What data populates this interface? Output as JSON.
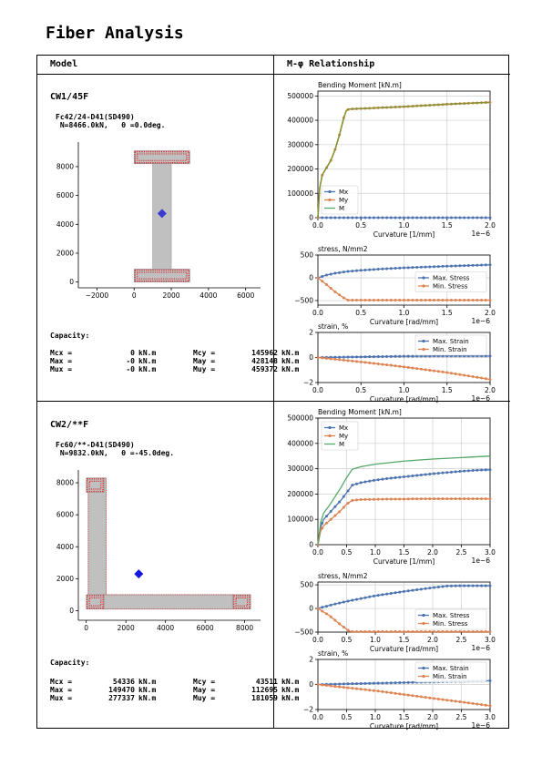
{
  "title": "Fiber Analysis",
  "headers": {
    "model": "Model",
    "relationship": "M-φ Relationship"
  },
  "cases": [
    {
      "name": "CW1/45F",
      "info_line1": "Fc42/24-D41(SD490)",
      "info_line2": " N=8466.0kN,   θ =0.0deg.",
      "capacity_title": "Capacity:",
      "capacity": [
        {
          "k1": "Mcx =",
          "v1": "0",
          "u1": "kN.m",
          "k2": "Mcy =",
          "v2": "145962",
          "u2": "kN.m"
        },
        {
          "k1": "Max =",
          "v1": "-0",
          "u1": "kN.m",
          "k2": "May =",
          "v2": "428148",
          "u2": "kN.m"
        },
        {
          "k1": "Mux =",
          "v1": "-0",
          "u1": "kN.m",
          "k2": "Muy =",
          "v2": "459372",
          "u2": "kN.m"
        }
      ],
      "section": {
        "type": "I-wall",
        "xlim": [
          -3000,
          6800
        ],
        "ylim": [
          -400,
          9700
        ],
        "xticks": [
          -2000,
          0,
          2000,
          4000,
          6000
        ],
        "yticks": [
          0,
          2000,
          4000,
          6000,
          8000
        ],
        "rects": [
          {
            "kind": "flange",
            "x": 0,
            "y": 0,
            "w": 3000,
            "h": 900
          },
          {
            "kind": "web",
            "x": 1000,
            "y": 900,
            "w": 1000,
            "h": 7300
          },
          {
            "kind": "flange",
            "x": 0,
            "y": 8200,
            "w": 3000,
            "h": 900
          }
        ],
        "centroid": [
          1500,
          4750
        ],
        "centroid_color": "#3a3ad0"
      },
      "mphi": {
        "xmax": 2.0,
        "xticks": [
          0.0,
          0.5,
          1.0,
          1.5,
          2.0
        ],
        "xtick_labels": [
          "0.0",
          "0.5",
          "1.0",
          "1.5",
          "2.0"
        ],
        "exp_label": "1e−6",
        "moment": {
          "title": "Bending Moment [kN.m]",
          "xlabel": "Curvature [1/mm]",
          "ylim": [
            0,
            520000
          ],
          "yticks": [
            0,
            100000,
            200000,
            300000,
            400000,
            500000
          ],
          "ytick_labels": [
            "0",
            "100000",
            "200000",
            "300000",
            "400000",
            "500000"
          ],
          "legend": [
            "Mx",
            "My",
            "M"
          ],
          "legend_pos": "lower-left",
          "Mx": {
            "x": [
              0,
              2.0
            ],
            "y": [
              0,
              0
            ]
          },
          "My": {
            "x": [
              0,
              0.02,
              0.05,
              0.1,
              0.15,
              0.2,
              0.25,
              0.3,
              0.33,
              0.36,
              0.5,
              0.75,
              1.0,
              1.25,
              1.5,
              1.75,
              2.0
            ],
            "y": [
              0,
              120000,
              175000,
              205000,
              235000,
              280000,
              340000,
              410000,
              440000,
              446000,
              448000,
              452000,
              456000,
              461000,
              466000,
              470000,
              474000
            ]
          },
          "M": {
            "x": [
              0,
              0.02,
              0.05,
              0.1,
              0.15,
              0.2,
              0.25,
              0.3,
              0.33,
              0.36,
              0.5,
              0.75,
              1.0,
              1.25,
              1.5,
              1.75,
              2.0
            ],
            "y": [
              0,
              120000,
              175000,
              205000,
              235000,
              280000,
              340000,
              410000,
              440000,
              446000,
              448000,
              452000,
              456000,
              461000,
              466000,
              470000,
              474000
            ]
          }
        },
        "stress": {
          "title": "stress, N/mm2",
          "xlabel": "Curvature [rad/mm]",
          "ylim": [
            -600,
            500
          ],
          "yticks": [
            -500,
            0,
            500
          ],
          "ytick_labels": [
            "−500",
            "0",
            "500"
          ],
          "legend": [
            "Max. Stress",
            "Min. Stress"
          ],
          "legend_pos": "right",
          "max": {
            "x": [
              0,
              0.1,
              0.2,
              0.35,
              0.5,
              0.75,
              1.0,
              1.5,
              2.0
            ],
            "y": [
              0,
              60,
              100,
              140,
              165,
              195,
              220,
              255,
              285
            ]
          },
          "min": {
            "x": [
              0,
              0.1,
              0.2,
              0.3,
              0.35,
              0.5,
              1.0,
              1.5,
              2.0
            ],
            "y": [
              0,
              -150,
              -310,
              -440,
              -490,
              -490,
              -490,
              -490,
              -490
            ]
          }
        },
        "strain": {
          "title": "strain, %",
          "xlabel": "Curvature [rad/mm]",
          "ylim": [
            -2,
            2
          ],
          "yticks": [
            -2,
            0,
            2
          ],
          "ytick_labels": [
            "−2",
            "0",
            "2"
          ],
          "legend": [
            "Max. Strain",
            "Min. Strain"
          ],
          "legend_pos": "upper-right",
          "max": {
            "x": [
              0,
              0.5,
              1.0,
              1.5,
              2.0
            ],
            "y": [
              0,
              0.05,
              0.1,
              0.12,
              0.12
            ]
          },
          "min": {
            "x": [
              0,
              0.5,
              1.0,
              1.5,
              2.0
            ],
            "y": [
              0,
              -0.35,
              -0.75,
              -1.2,
              -1.75
            ]
          }
        }
      }
    },
    {
      "name": "CW2/**F",
      "info_line1": "Fc60/**-D41(SD490)",
      "info_line2": " N=9832.0kN,   θ =-45.0deg.",
      "capacity_title": "Capacity:",
      "capacity": [
        {
          "k1": "Mcx =",
          "v1": "54336",
          "u1": "kN.m",
          "k2": "Mcy =",
          "v2": "43511",
          "u2": "kN.m"
        },
        {
          "k1": "Max =",
          "v1": "149470",
          "u1": "kN.m",
          "k2": "May =",
          "v2": "112695",
          "u2": "kN.m"
        },
        {
          "k1": "Mux =",
          "v1": "277337",
          "u1": "kN.m",
          "k2": "Muy =",
          "v2": "181059",
          "u2": "kN.m"
        }
      ],
      "section": {
        "type": "L-wall",
        "xlim": [
          -400,
          8800
        ],
        "ylim": [
          -600,
          8800
        ],
        "xticks": [
          0,
          2000,
          4000,
          6000,
          8000
        ],
        "yticks": [
          0,
          2000,
          4000,
          6000,
          8000
        ],
        "rects": [
          {
            "kind": "web",
            "x": 100,
            "y": 100,
            "w": 900,
            "h": 8200
          },
          {
            "kind": "web",
            "x": 100,
            "y": 100,
            "w": 8200,
            "h": 900
          },
          {
            "kind": "end",
            "x": 0,
            "y": 7400,
            "w": 900,
            "h": 900
          },
          {
            "kind": "end",
            "x": 0,
            "y": 100,
            "w": 900,
            "h": 900
          },
          {
            "kind": "end",
            "x": 7400,
            "y": 100,
            "w": 900,
            "h": 900
          }
        ],
        "centroid": [
          2650,
          2300
        ],
        "centroid_color": "#1515e0"
      },
      "mphi": {
        "xmax": 3.0,
        "xticks": [
          0.0,
          0.5,
          1.0,
          1.5,
          2.0,
          2.5,
          3.0
        ],
        "xtick_labels": [
          "0.0",
          "0.5",
          "1.0",
          "1.5",
          "2.0",
          "2.5",
          "3.0"
        ],
        "exp_label": "1e−6",
        "moment": {
          "title": "Bending Moment [kN.m]",
          "xlabel": "Curvature [1/mm]",
          "ylim": [
            0,
            500000
          ],
          "yticks": [
            0,
            100000,
            200000,
            300000,
            400000,
            500000
          ],
          "ytick_labels": [
            "0",
            "100000",
            "200000",
            "300000",
            "400000",
            "500000"
          ],
          "legend": [
            "Mx",
            "My",
            "M"
          ],
          "legend_pos": "upper-left",
          "Mx": {
            "x": [
              0,
              0.05,
              0.1,
              0.2,
              0.3,
              0.4,
              0.5,
              0.6,
              0.75,
              1.0,
              1.25,
              1.5,
              1.75,
              2.0,
              2.25,
              2.5,
              2.75,
              3.0
            ],
            "y": [
              0,
              70000,
              100000,
              125000,
              150000,
              175000,
              205000,
              235000,
              245000,
              255000,
              262000,
              268000,
              274000,
              280000,
              285000,
              290000,
              294000,
              296000
            ]
          },
          "My": {
            "x": [
              0,
              0.05,
              0.1,
              0.2,
              0.3,
              0.4,
              0.5,
              0.6,
              0.75,
              1.0,
              1.25,
              1.5,
              1.75,
              2.0,
              2.25,
              2.5,
              2.75,
              3.0
            ],
            "y": [
              0,
              55000,
              75000,
              95000,
              115000,
              135000,
              160000,
              175000,
              178000,
              179000,
              180000,
              180000,
              181000,
              181000,
              181000,
              181000,
              181000,
              181000
            ]
          },
          "M": {
            "x": [
              0,
              0.05,
              0.1,
              0.2,
              0.3,
              0.4,
              0.5,
              0.6,
              0.75,
              1.0,
              1.5,
              2.0,
              2.5,
              3.0
            ],
            "y": [
              0,
              90000,
              125000,
              155000,
              190000,
              225000,
              265000,
              298000,
              308000,
              318000,
              330000,
              338000,
              344000,
              350000
            ]
          }
        },
        "stress": {
          "title": "stress, N/mm2",
          "xlabel": "Curvature [rad/mm]",
          "ylim": [
            -500,
            560
          ],
          "yticks": [
            -500,
            0,
            500
          ],
          "ytick_labels": [
            "−500",
            "0",
            "500"
          ],
          "legend": [
            "Max. Stress",
            "Min. Stress"
          ],
          "legend_pos": "lower-right",
          "max": {
            "x": [
              0,
              0.25,
              0.5,
              0.75,
              1.0,
              1.5,
              2.0,
              2.25,
              2.5,
              3.0
            ],
            "y": [
              0,
              80,
              150,
              210,
              270,
              360,
              440,
              475,
              480,
              480
            ]
          },
          "min": {
            "x": [
              0,
              0.2,
              0.4,
              0.55,
              0.6,
              1.0,
              2.0,
              3.0
            ],
            "y": [
              0,
              -150,
              -350,
              -480,
              -490,
              -490,
              -490,
              -490
            ]
          }
        },
        "strain": {
          "title": "strain, %",
          "xlabel": "Curvature [rad/mm]",
          "ylim": [
            -2,
            2
          ],
          "yticks": [
            -2,
            0,
            2
          ],
          "ytick_labels": [
            "−2",
            "0",
            "2"
          ],
          "legend": [
            "Max. Strain",
            "Min. Strain"
          ],
          "legend_pos": "upper-right",
          "max": {
            "x": [
              0,
              1.0,
              2.0,
              3.0
            ],
            "y": [
              0,
              0.1,
              0.2,
              0.3
            ]
          },
          "min": {
            "x": [
              0,
              0.5,
              1.0,
              1.5,
              2.0,
              2.5,
              3.0
            ],
            "y": [
              0,
              -0.25,
              -0.5,
              -0.8,
              -1.1,
              -1.4,
              -1.7
            ]
          }
        }
      }
    }
  ],
  "colors": {
    "blue": "#4c72b0",
    "orange": "#dd8452",
    "green": "#55a868",
    "olive": "#8f8f2a",
    "section_fill": "#c0c0c0",
    "rebar": "#d62728"
  }
}
